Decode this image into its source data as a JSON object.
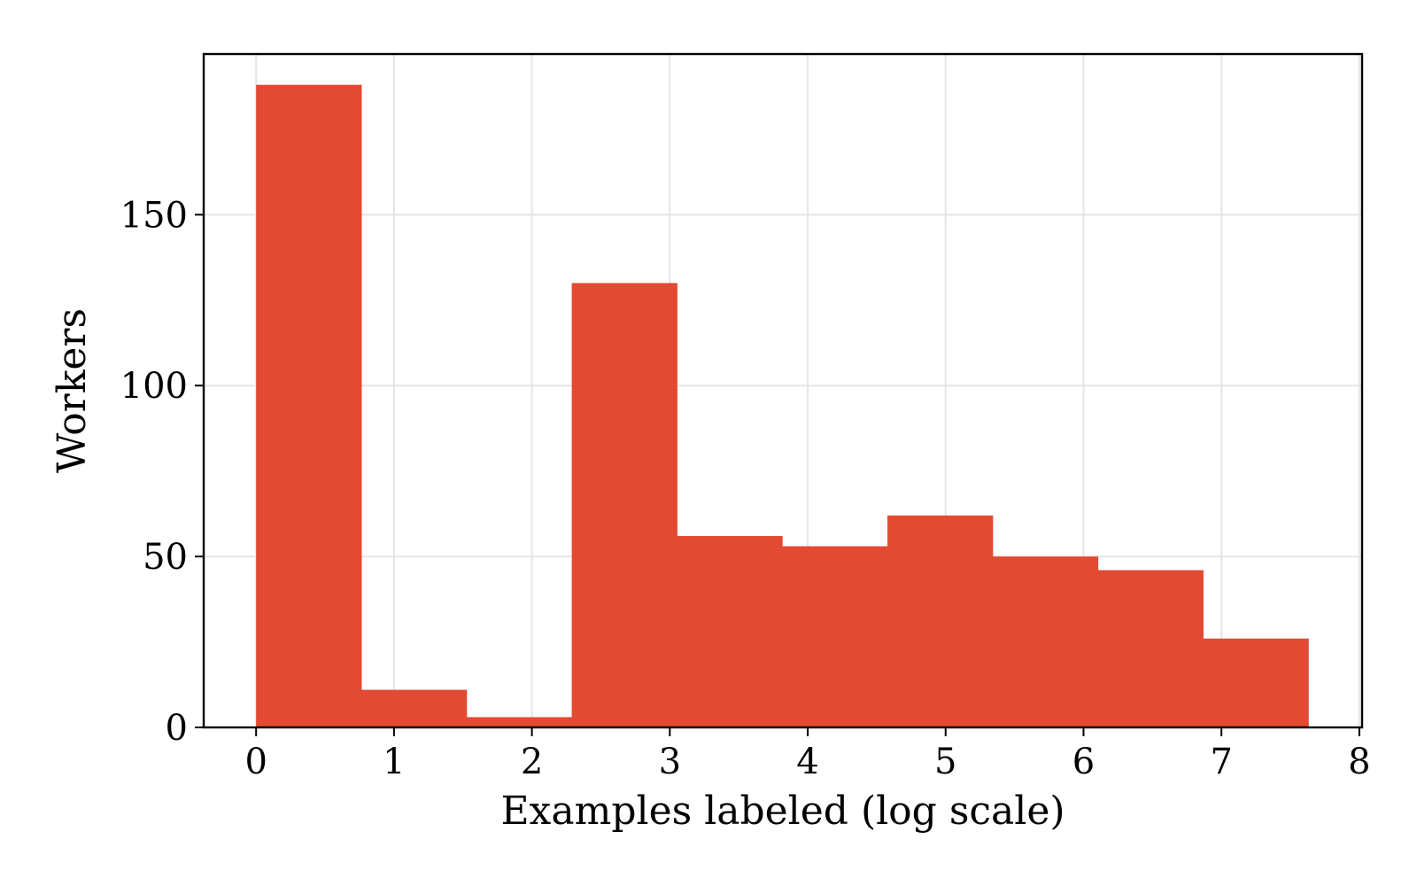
{
  "chart_data": {
    "type": "bar",
    "title": "",
    "xlabel": "Examples labeled (log scale)",
    "ylabel": "Workers",
    "bin_edges": [
      0,
      0.763,
      1.526,
      2.289,
      3.052,
      3.815,
      4.578,
      5.341,
      6.104,
      6.867,
      7.63
    ],
    "values": [
      188,
      11,
      3,
      130,
      56,
      53,
      62,
      50,
      46,
      26
    ],
    "xlim": [
      -0.38,
      8.02
    ],
    "ylim": [
      0,
      197
    ],
    "x_ticks": [
      0,
      1,
      2,
      3,
      4,
      5,
      6,
      7,
      8
    ],
    "x_tick_labels": [
      "0",
      "1",
      "2",
      "3",
      "4",
      "5",
      "6",
      "7",
      "8"
    ],
    "y_ticks": [
      0,
      50,
      100,
      150
    ],
    "y_tick_labels": [
      "0",
      "50",
      "100",
      "150"
    ],
    "grid": true,
    "legend": "none",
    "colors": {
      "bar": "#e24a33",
      "grid": "#e5e5e5",
      "axis": "#000000",
      "background": "#ffffff"
    }
  }
}
